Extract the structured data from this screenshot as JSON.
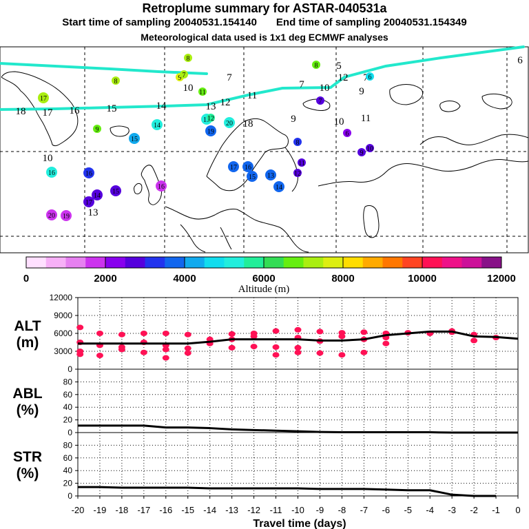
{
  "header": {
    "title": "Retroplume summary for ASTAR-040531a",
    "start_text": "Start time of sampling 20040531.154140",
    "end_text": "End time of sampling 20040531.154349",
    "met_text": "Meteorological data used is 1x1 deg ECMWF analyses"
  },
  "colorbar": {
    "tick_labels": [
      "0",
      "2000",
      "4000",
      "6000",
      "8000",
      "10000",
      "12000"
    ],
    "title": "Altitude (m)",
    "colors": [
      "#ffe0ff",
      "#f7b0f7",
      "#e680f0",
      "#cc33ee",
      "#8800ee",
      "#5500dd",
      "#2233ee",
      "#1166ee",
      "#11aaee",
      "#11ddee",
      "#22eedd",
      "#22ee99",
      "#33dd55",
      "#66ee11",
      "#aaee11",
      "#ddee11",
      "#ffdd00",
      "#ffaa00",
      "#ff7700",
      "#ff4422",
      "#ff1155",
      "#ee1188",
      "#cc1199",
      "#881188"
    ]
  },
  "map": {
    "trajectory_color": "#22e8cc",
    "labels": [
      {
        "n": "18",
        "x": -20,
        "y": 162,
        "c": ""
      },
      {
        "n": "17",
        "x": -19,
        "y": 164,
        "c": ""
      },
      {
        "n": "16",
        "x": -18,
        "y": 161,
        "c": ""
      },
      {
        "n": "15",
        "x": -16,
        "y": 158,
        "c": ""
      },
      {
        "n": "14",
        "x": -14,
        "y": 154,
        "c": ""
      },
      {
        "n": "13",
        "x": -12,
        "y": 155,
        "c": ""
      },
      {
        "n": "12",
        "x": -11,
        "y": 149,
        "c": ""
      },
      {
        "n": "11",
        "x": -10,
        "y": 139,
        "c": ""
      },
      {
        "n": "10",
        "x": -7,
        "y": 128,
        "c": ""
      },
      {
        "n": "9",
        "x": -5,
        "y": 133,
        "c": ""
      },
      {
        "n": "7",
        "x": -5,
        "y": 113,
        "c": ""
      },
      {
        "n": "6",
        "x": 2,
        "y": 88,
        "c": ""
      },
      {
        "n": "17",
        "x": -19,
        "y": 142,
        "c": "#aaee11"
      },
      {
        "n": "8",
        "x": -16,
        "y": 117,
        "c": "#aaee11"
      },
      {
        "n": "9",
        "x": -17,
        "y": 187,
        "c": "#66ee11"
      },
      {
        "n": "15",
        "x": -15,
        "y": 201,
        "c": "#11aaee"
      },
      {
        "n": "10",
        "x": -19,
        "y": 230,
        "c": ""
      },
      {
        "n": "16",
        "x": -19,
        "y": 250,
        "c": "#22eedd"
      },
      {
        "n": "16",
        "x": -17,
        "y": 251,
        "c": "#2233ee"
      },
      {
        "n": "15",
        "x": -16,
        "y": 277,
        "c": "#5500dd"
      },
      {
        "n": "14",
        "x": -17,
        "y": 283,
        "c": "#5500dd"
      },
      {
        "n": "17",
        "x": -17,
        "y": 293,
        "c": "#5500dd"
      },
      {
        "n": "13",
        "x": -17,
        "y": 309,
        "c": ""
      },
      {
        "n": "20",
        "x": -19,
        "y": 312,
        "c": "#cc33ee"
      },
      {
        "n": "19",
        "x": -18,
        "y": 313,
        "c": "#cc33ee"
      },
      {
        "n": "16",
        "x": -14,
        "y": 270,
        "c": "#cc33ee"
      },
      {
        "n": "8",
        "x": -13,
        "y": 84,
        "c": "#aaee11"
      },
      {
        "n": "9",
        "x": -13,
        "y": 112,
        "c": "#ddee11"
      },
      {
        "n": "7",
        "x": -13,
        "y": 108,
        "c": "#aaee11"
      },
      {
        "n": "10",
        "x": -13,
        "y": 128,
        "c": ""
      },
      {
        "n": "14",
        "x": -14,
        "y": 181,
        "c": "#22eedd"
      },
      {
        "n": "13",
        "x": -12,
        "y": 173,
        "c": "#22eedd"
      },
      {
        "n": "12",
        "x": -12,
        "y": 171,
        "c": "#22ee99"
      },
      {
        "n": "11",
        "x": -12,
        "y": 133,
        "c": "#66ee11"
      },
      {
        "n": "20",
        "x": -11,
        "y": 178,
        "c": "#22eedd"
      },
      {
        "n": "19",
        "x": -12,
        "y": 190,
        "c": "#1166ee"
      },
      {
        "n": "18",
        "x": -10,
        "y": 180,
        "c": ""
      },
      {
        "n": "7",
        "x": -11,
        "y": 113,
        "c": ""
      },
      {
        "n": "17",
        "x": -11,
        "y": 242,
        "c": "#1166ee"
      },
      {
        "n": "16",
        "x": -10,
        "y": 242,
        "c": "#1166ee"
      },
      {
        "n": "15",
        "x": -10,
        "y": 256,
        "c": "#1166ee"
      },
      {
        "n": "14",
        "x": -9,
        "y": 271,
        "c": "#1166ee"
      },
      {
        "n": "13",
        "x": -9,
        "y": 254,
        "c": "#1166ee"
      },
      {
        "n": "12",
        "x": -8,
        "y": 251,
        "c": "#5500dd"
      },
      {
        "n": "11",
        "x": -8,
        "y": 236,
        "c": "#5500dd"
      },
      {
        "n": "9",
        "x": -8,
        "y": 173,
        "c": ""
      },
      {
        "n": "8",
        "x": -8,
        "y": 206,
        "c": "#2233ee"
      },
      {
        "n": "7",
        "x": -8,
        "y": 123,
        "c": ""
      },
      {
        "n": "8",
        "x": -7,
        "y": 94,
        "c": "#66ee11"
      },
      {
        "n": "7",
        "x": -7,
        "y": 146,
        "c": "#5500dd"
      },
      {
        "n": "6",
        "x": -6,
        "y": 193,
        "c": "#8800ee"
      },
      {
        "n": "5",
        "x": -6,
        "y": 96,
        "c": ""
      },
      {
        "n": "12",
        "x": -6,
        "y": 113,
        "c": ""
      },
      {
        "n": "6",
        "x": -5,
        "y": 111,
        "c": "#11ddee"
      },
      {
        "n": "10",
        "x": -6,
        "y": 177,
        "c": ""
      },
      {
        "n": "11",
        "x": -5,
        "y": 172,
        "c": ""
      },
      {
        "n": "10",
        "x": -5,
        "y": 215,
        "c": "#5500dd"
      },
      {
        "n": "9",
        "x": -5,
        "y": 221,
        "c": "#5500dd"
      }
    ]
  },
  "timeseries": {
    "x_tick_labels": [
      "-20",
      "-19",
      "-18",
      "-17",
      "-16",
      "-15",
      "-14",
      "-13",
      "-12",
      "-11",
      "-10",
      "-9",
      "-8",
      "-7",
      "-6",
      "-5",
      "-4",
      "-3",
      "-2",
      "-1",
      "0"
    ],
    "x_title": "Travel time (days)"
  },
  "chart_data": [
    {
      "type": "line",
      "name": "ALT",
      "ylabel": "ALT (m)",
      "ylabel_line1": "ALT",
      "ylabel_line2": "(m)",
      "ylim": [
        0,
        12000
      ],
      "yticks": [
        "0",
        "3000",
        "6000",
        "9000",
        "12000"
      ],
      "xlabel": "Travel time (days)",
      "xlim": [
        -20,
        0
      ],
      "x": [
        -20,
        -19,
        -18,
        -17,
        -16,
        -15,
        -14,
        -13,
        -12,
        -11,
        -10,
        -9,
        -8,
        -7,
        -6,
        -5,
        -4,
        -3,
        -2,
        -1,
        0
      ],
      "values": [
        4300,
        4300,
        4300,
        4300,
        4300,
        4300,
        4600,
        5000,
        5000,
        5000,
        5000,
        4800,
        4800,
        5000,
        5700,
        6000,
        6300,
        6300,
        5500,
        5400,
        5100
      ],
      "scatter_color": "#ff1155",
      "scatter": [
        [
          -19.9,
          7000
        ],
        [
          -19.9,
          4500
        ],
        [
          -19.9,
          3000
        ],
        [
          -19.9,
          2500
        ],
        [
          -19,
          6000
        ],
        [
          -19,
          4000
        ],
        [
          -19,
          2300
        ],
        [
          -18,
          5800
        ],
        [
          -18,
          3700
        ],
        [
          -18,
          3300
        ],
        [
          -17,
          6000
        ],
        [
          -17,
          4500
        ],
        [
          -17,
          2800
        ],
        [
          -16,
          6000
        ],
        [
          -16,
          4000
        ],
        [
          -16,
          3300
        ],
        [
          -16,
          1900
        ],
        [
          -15,
          5800
        ],
        [
          -15,
          3500
        ],
        [
          -15,
          2700
        ],
        [
          -14,
          5000
        ],
        [
          -14,
          4300
        ],
        [
          -13,
          5900
        ],
        [
          -13,
          5000
        ],
        [
          -13,
          3600
        ],
        [
          -12,
          6000
        ],
        [
          -12,
          5500
        ],
        [
          -12,
          3800
        ],
        [
          -11,
          6400
        ],
        [
          -11,
          3700
        ],
        [
          -11,
          2400
        ],
        [
          -10,
          6600
        ],
        [
          -10,
          5300
        ],
        [
          -10,
          3600
        ],
        [
          -10,
          2800
        ],
        [
          -9,
          6300
        ],
        [
          -9,
          4700
        ],
        [
          -9,
          2700
        ],
        [
          -8,
          6100
        ],
        [
          -8,
          5500
        ],
        [
          -8,
          2400
        ],
        [
          -7,
          6200
        ],
        [
          -7,
          5000
        ],
        [
          -7,
          2800
        ],
        [
          -6,
          6000
        ],
        [
          -6,
          5300
        ],
        [
          -6,
          4300
        ],
        [
          -5,
          6100
        ],
        [
          -4,
          6000
        ],
        [
          -3,
          6400
        ],
        [
          -3,
          6200
        ],
        [
          -2,
          5800
        ],
        [
          -2,
          4800
        ],
        [
          -1,
          5300
        ]
      ]
    },
    {
      "type": "line",
      "name": "ABL",
      "ylabel": "ABL (%)",
      "ylabel_line1": "ABL",
      "ylabel_line2": "(%)",
      "ylim": [
        0,
        100
      ],
      "yticks": [
        "0",
        "20",
        "40",
        "60",
        "80"
      ],
      "xlim": [
        -20,
        0
      ],
      "x": [
        -20,
        -19,
        -18,
        -17,
        -16,
        -15,
        -14,
        -13,
        -12,
        -11,
        -10,
        -9,
        -8,
        -7,
        -6,
        -5,
        -4,
        -3,
        -2,
        -1,
        0
      ],
      "values": [
        11,
        11,
        11,
        11,
        8,
        8,
        7,
        5,
        4,
        3,
        2,
        1,
        0.5,
        0.5,
        0.5,
        0.5,
        0.5,
        0,
        0,
        0,
        0
      ]
    },
    {
      "type": "line",
      "name": "STR",
      "ylabel": "STR (%)",
      "ylabel_line1": "STR",
      "ylabel_line2": "(%)",
      "ylim": [
        0,
        100
      ],
      "yticks": [
        "0",
        "20",
        "40",
        "60",
        "80"
      ],
      "xlabel": "Travel time (days)",
      "xlim": [
        -20,
        0
      ],
      "x": [
        -20,
        -19,
        -18,
        -17,
        -16,
        -15,
        -14,
        -13,
        -12,
        -11,
        -10,
        -9,
        -8,
        -7,
        -6,
        -5,
        -4,
        -3,
        -2,
        -1
      ],
      "values": [
        14,
        14,
        13,
        13,
        13,
        13,
        12,
        12,
        12,
        12,
        12,
        11,
        11,
        11,
        10,
        9,
        9,
        2,
        0,
        0
      ]
    }
  ]
}
